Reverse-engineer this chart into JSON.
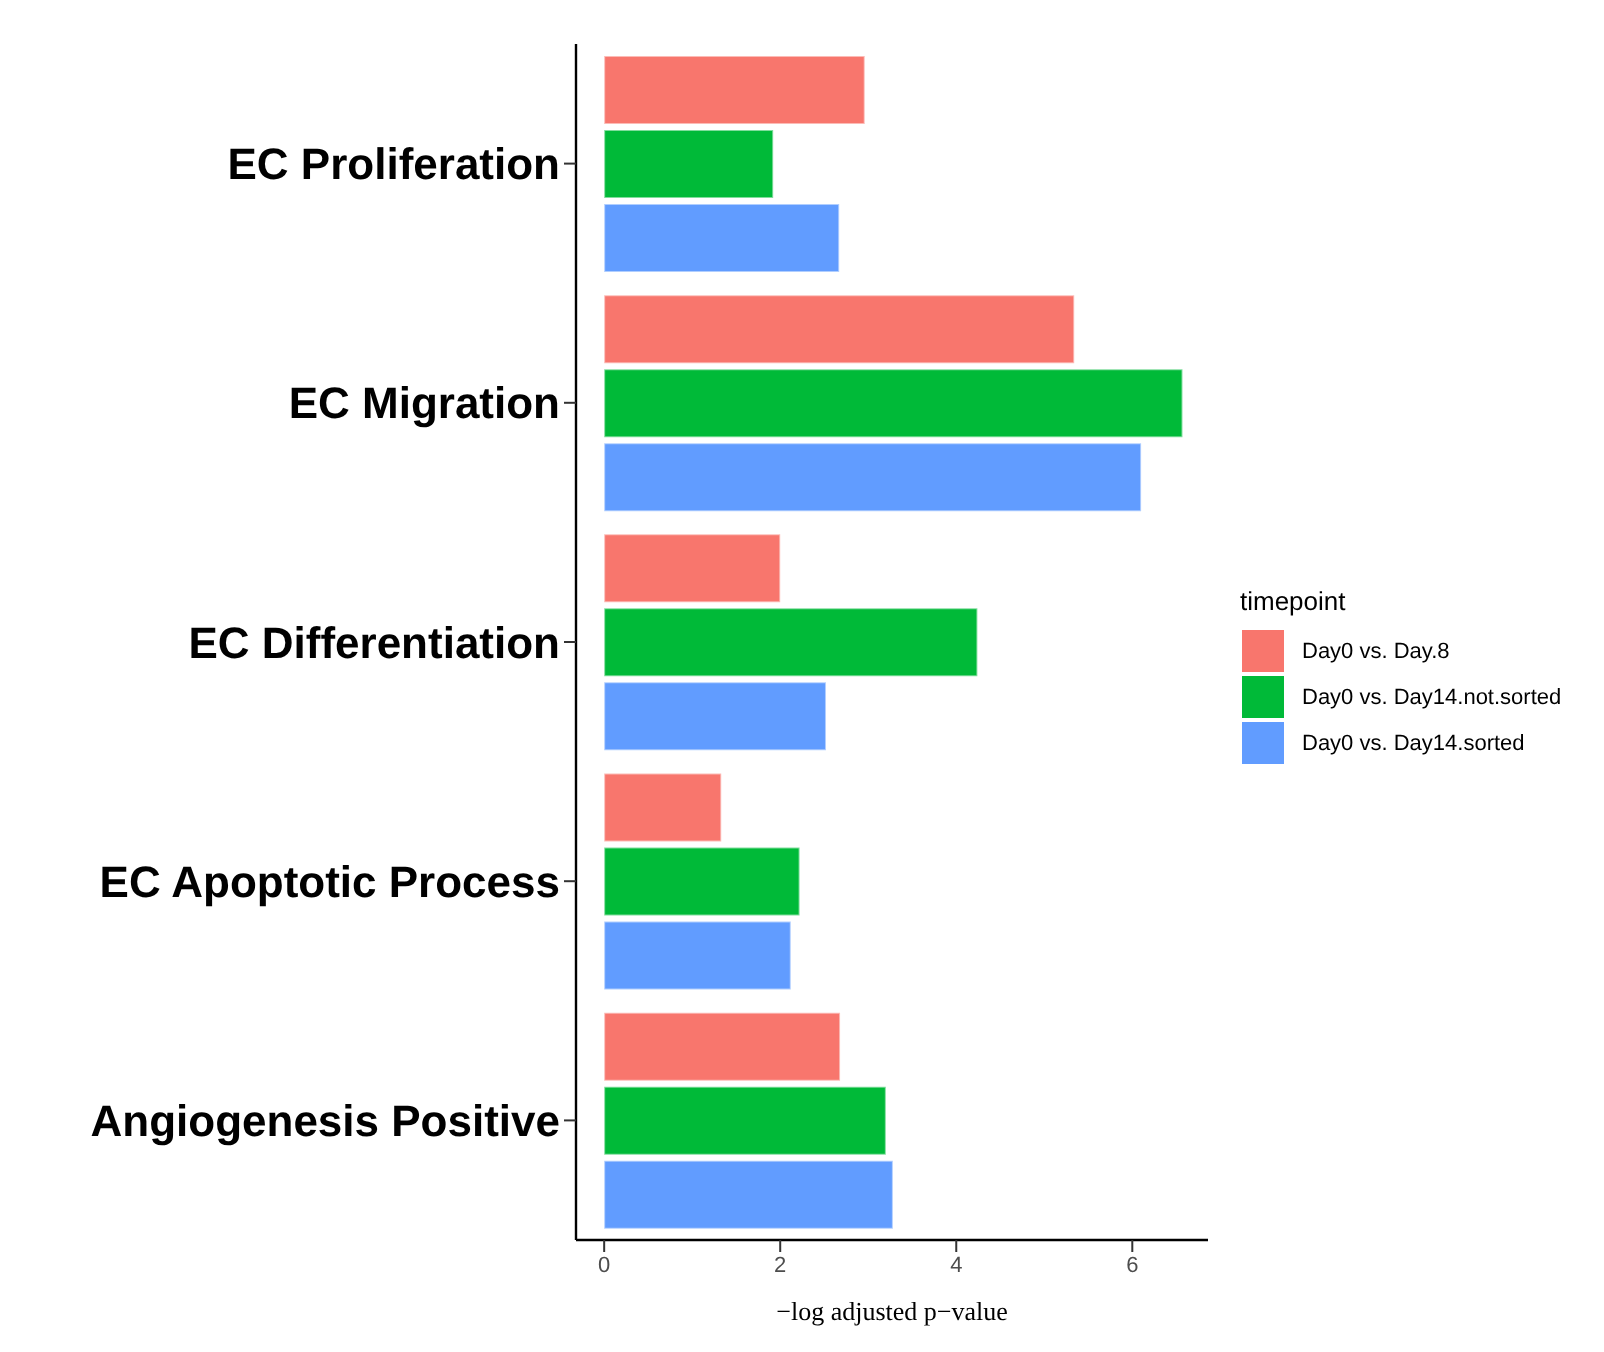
{
  "chart_data": {
    "type": "bar",
    "orientation": "horizontal",
    "xlabel": "−log adjusted p−value",
    "legend_title": "timepoint",
    "legend": "right",
    "grid": false,
    "categories": [
      "EC Proliferation",
      "EC Migration",
      "EC Differentiation",
      "EC Apoptotic Process",
      "Angiogenesis Positive"
    ],
    "xlim": [
      -0.32,
      6.86
    ],
    "xticks": [
      0,
      2,
      4,
      6
    ],
    "series": [
      {
        "name": "Day0 vs. Day.8",
        "color": "#f8766d",
        "values": [
          2.96,
          5.34,
          2.0,
          1.33,
          2.68
        ]
      },
      {
        "name": "Day0 vs. Day14.not.sorted",
        "color": "#00ba38",
        "values": [
          1.92,
          6.57,
          4.24,
          2.22,
          3.2
        ]
      },
      {
        "name": "Day0 vs. Day14.sorted",
        "color": "#619cff",
        "values": [
          2.67,
          6.1,
          2.52,
          2.12,
          3.28
        ]
      }
    ]
  }
}
